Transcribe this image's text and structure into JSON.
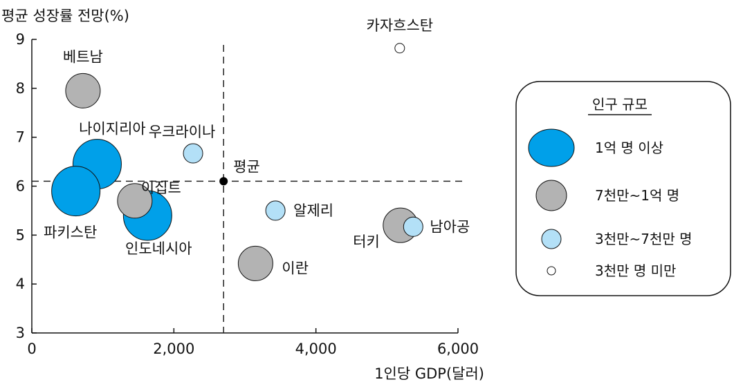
{
  "chart_data": {
    "type": "scatter",
    "ylabel": "평균 성장률 전망(%)",
    "xlabel": "1인당 GDP(달러)",
    "xlim": [
      0,
      6000
    ],
    "ylim": [
      3,
      9
    ],
    "x_ticks": [
      0,
      2000,
      4000,
      6000
    ],
    "x_tick_labels": [
      "0",
      "2,000",
      "4,000",
      "6,000"
    ],
    "y_ticks": [
      3,
      4,
      5,
      6,
      7,
      8,
      9
    ],
    "y_tick_labels": [
      "3",
      "4",
      "5",
      "6",
      "7",
      "8",
      "9"
    ],
    "average": {
      "label": "평균",
      "x": 2700,
      "y": 6.1
    },
    "points": [
      {
        "name": "베트남",
        "x": 720,
        "y": 7.95,
        "size": "7천만~1억 명"
      },
      {
        "name": "나이지리아",
        "x": 920,
        "y": 6.45,
        "size": "1억 명 이상"
      },
      {
        "name": "파키스탄",
        "x": 620,
        "y": 5.9,
        "size": "1억 명 이상"
      },
      {
        "name": "이집트",
        "x": 1450,
        "y": 5.7,
        "size": "7천만~1억 명"
      },
      {
        "name": "인도네시아",
        "x": 1630,
        "y": 5.4,
        "size": "1억 명 이상"
      },
      {
        "name": "우크라이나",
        "x": 2270,
        "y": 6.67,
        "size": "3천만~7천만 명"
      },
      {
        "name": "알제리",
        "x": 3430,
        "y": 5.5,
        "size": "3천만~7천만 명"
      },
      {
        "name": "이란",
        "x": 3150,
        "y": 4.42,
        "size": "7천만~1억 명"
      },
      {
        "name": "터키",
        "x": 5190,
        "y": 5.2,
        "size": "7천만~1억 명"
      },
      {
        "name": "남아공",
        "x": 5370,
        "y": 5.17,
        "size": "3천만~7천만 명"
      },
      {
        "name": "카자흐스탄",
        "x": 5180,
        "y": 8.82,
        "size": "3천만 명 미만"
      }
    ],
    "legend": {
      "title": "인구 규모",
      "position": "right",
      "entries": [
        "1억 명 이상",
        "7천만~1억 명",
        "3천만~7천만 명",
        "3천만 명 미만"
      ]
    }
  },
  "colors": {
    "large": "#00a0e9",
    "mid": "#b3b3b3",
    "small": "#b3e0f7",
    "tiny": "#ffffff",
    "average": "#000000"
  }
}
